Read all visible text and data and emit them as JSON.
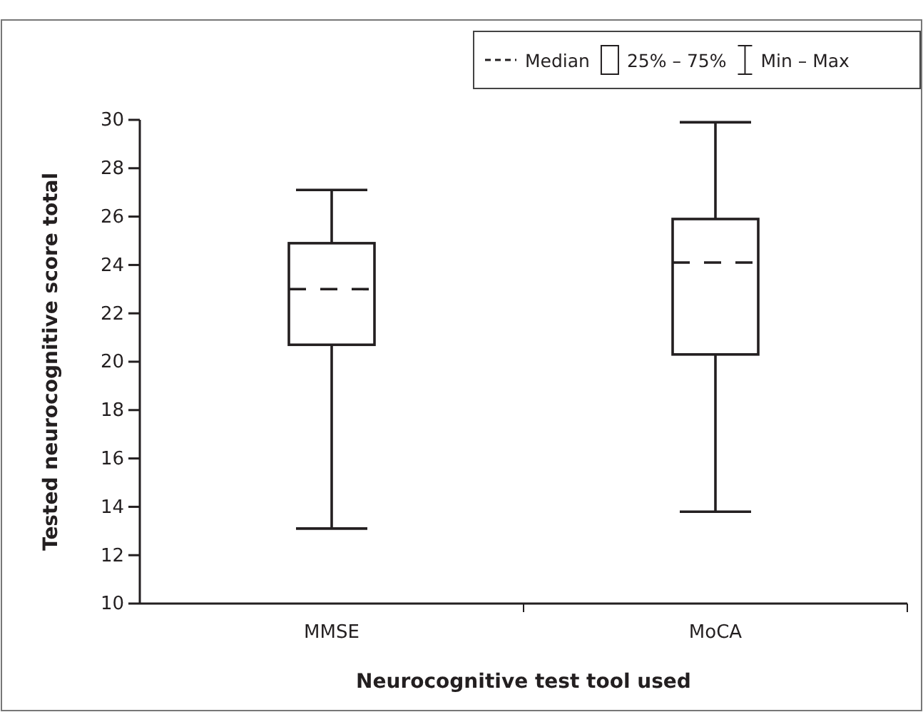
{
  "chart_data": {
    "type": "box",
    "xlabel": "Neurocognitive test tool used",
    "ylabel": "Tested neurocognitive score total",
    "categories": [
      "MMSE",
      "MoCA"
    ],
    "boxes": [
      {
        "low": 13.1,
        "q1": 20.7,
        "median": 23.0,
        "q3": 24.9,
        "high": 27.1
      },
      {
        "low": 13.8,
        "q1": 20.3,
        "median": 24.1,
        "q3": 25.9,
        "high": 29.9
      }
    ],
    "color": "#231f20",
    "line_style": "dashed",
    "ylim": [
      10,
      30
    ],
    "yticks": [
      10,
      12,
      14,
      16,
      18,
      20,
      22,
      24,
      26,
      28,
      30
    ],
    "grid": false,
    "annotations": [
      "Median",
      "25% – 75%",
      "Min – Max"
    ]
  }
}
